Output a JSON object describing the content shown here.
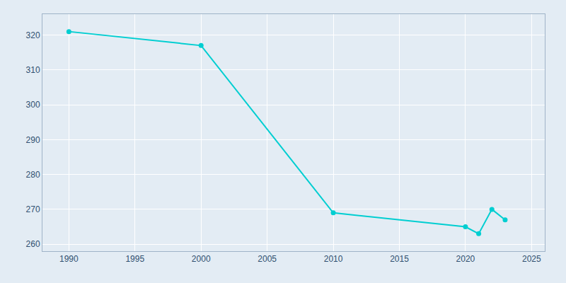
{
  "chart_data": {
    "type": "line",
    "x": [
      1990,
      2000,
      2010,
      2020,
      2021,
      2022,
      2023
    ],
    "values": [
      321,
      317,
      269,
      265,
      263,
      270,
      267
    ],
    "color": "#00CED1",
    "marker": "circle",
    "xlim": [
      1988,
      2026
    ],
    "xticks": [
      1990,
      1995,
      2000,
      2005,
      2010,
      2015,
      2020,
      2025
    ],
    "ylim": [
      258,
      326
    ],
    "yticks": [
      260,
      270,
      280,
      290,
      300,
      310,
      320
    ],
    "grid": true
  }
}
